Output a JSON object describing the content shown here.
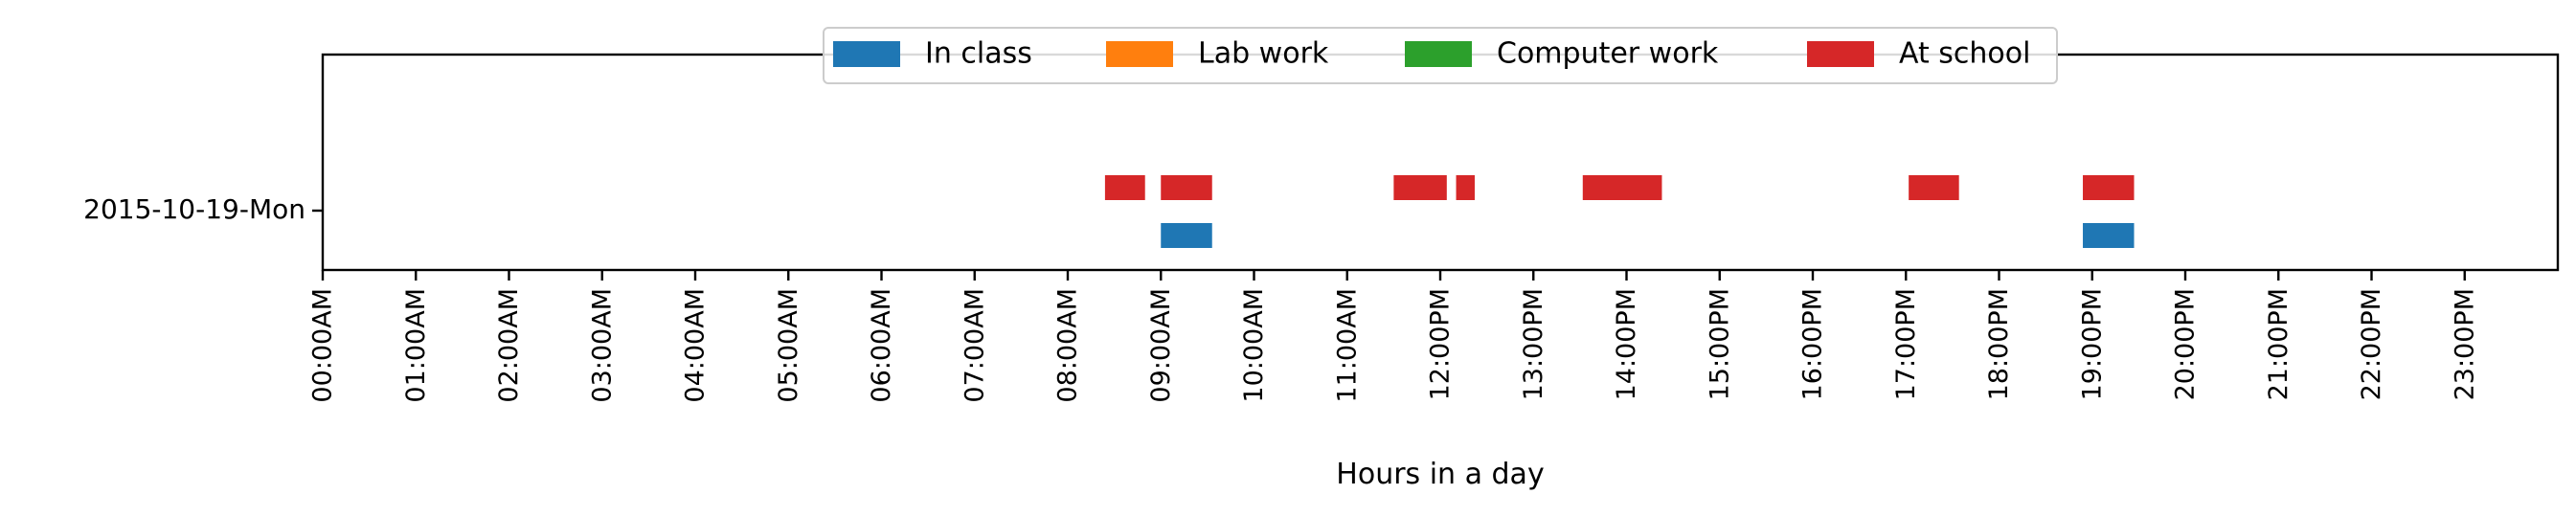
{
  "chart_data": {
    "type": "timeline",
    "title": "",
    "xlabel": "Hours in a day",
    "ylabel": "",
    "xlim": [
      0,
      24
    ],
    "x_ticks": [
      0,
      1,
      2,
      3,
      4,
      5,
      6,
      7,
      8,
      9,
      10,
      11,
      12,
      13,
      14,
      15,
      16,
      17,
      18,
      19,
      20,
      21,
      22,
      23
    ],
    "x_tick_labels": [
      "00:00AM",
      "01:00AM",
      "02:00AM",
      "03:00AM",
      "04:00AM",
      "05:00AM",
      "06:00AM",
      "07:00AM",
      "08:00AM",
      "09:00AM",
      "10:00AM",
      "11:00AM",
      "12:00PM",
      "13:00PM",
      "14:00PM",
      "15:00PM",
      "16:00PM",
      "17:00PM",
      "18:00PM",
      "19:00PM",
      "20:00PM",
      "21:00PM",
      "22:00PM",
      "23:00PM"
    ],
    "categories": [
      "2015-10-19-Mon"
    ],
    "legend_position": "top-center",
    "grid": false,
    "series": [
      {
        "name": "In class",
        "color": "#1f77b4",
        "lane": "lower",
        "intervals": [
          [
            9.0,
            9.55
          ],
          [
            18.9,
            19.45
          ]
        ]
      },
      {
        "name": "Lab work",
        "color": "#ff7f0e",
        "lane": "upper",
        "intervals": []
      },
      {
        "name": "Computer work",
        "color": "#2ca02c",
        "lane": "upper",
        "intervals": []
      },
      {
        "name": "At school",
        "color": "#d62728",
        "lane": "upper",
        "intervals": [
          [
            8.4,
            8.83
          ],
          [
            9.0,
            9.55
          ],
          [
            11.5,
            12.07
          ],
          [
            12.17,
            12.37
          ],
          [
            13.53,
            14.38
          ],
          [
            17.03,
            17.57
          ],
          [
            18.9,
            19.45
          ]
        ]
      }
    ]
  }
}
